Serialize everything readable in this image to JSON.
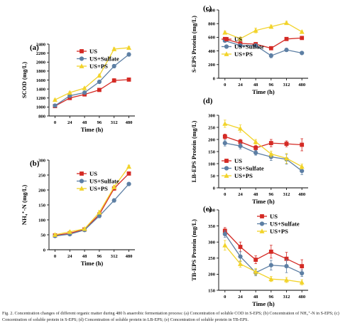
{
  "colors": {
    "us": "#d42a24",
    "sulfate": "#5d7fa4",
    "ps": "#f2d32a"
  },
  "caption": "Fig. 2. Concentration changes of different organic matter during 480 h anaerobic fermentation process: (a) Concentration of soluble COD in S-EPS; (b) Concentration of NH₄⁺-N in S-EPS; (c) Concentration of soluble protein in S-EPS; (d) Concentration of soluble protein in LB-EPS; (e) Concentration of soluble protein in TB-EPS.",
  "chart_data": [
    {
      "panel": "(a)",
      "type": "line",
      "xlabel": "Time (h)",
      "ylabel": "SCOD (mg/L)",
      "categories": [
        "0",
        "24",
        "48",
        "96",
        "312",
        "480"
      ],
      "ylim": [
        800,
        2400
      ],
      "yticks": [
        "800",
        "1000",
        "1200",
        "1400",
        "1600",
        "1800",
        "2000",
        "2200",
        "2400"
      ],
      "legend_position": "top-left",
      "series": [
        {
          "name": "US",
          "color_key": "us",
          "marker": "square",
          "values": [
            1020,
            1200,
            1280,
            1380,
            1590,
            1610
          ],
          "errors": [
            20,
            25,
            20,
            20,
            40,
            25
          ]
        },
        {
          "name": "US+Sulfate",
          "color_key": "sulfate",
          "marker": "circle",
          "values": [
            1030,
            1250,
            1320,
            1560,
            1910,
            2170
          ],
          "errors": [
            20,
            25,
            20,
            20,
            40,
            40
          ]
        },
        {
          "name": "US+PS",
          "color_key": "ps",
          "marker": "triangle",
          "values": [
            1160,
            1320,
            1420,
            1700,
            2290,
            2320
          ],
          "errors": [
            20,
            20,
            20,
            20,
            30,
            25
          ]
        }
      ]
    },
    {
      "panel": "(b)",
      "type": "line",
      "xlabel": "Time (h)",
      "ylabel": "NH₄⁺-N (mg/L)",
      "categories": [
        "0",
        "24",
        "48",
        "96",
        "312",
        "480"
      ],
      "ylim": [
        0,
        300
      ],
      "yticks": [
        "0",
        "50",
        "100",
        "150",
        "200",
        "250",
        "300"
      ],
      "legend_position": "top-left",
      "series": [
        {
          "name": "US",
          "color_key": "us",
          "marker": "square",
          "values": [
            48,
            55,
            68,
            118,
            205,
            255
          ],
          "errors": [
            4,
            4,
            4,
            6,
            6,
            5
          ]
        },
        {
          "name": "US+Sulfate",
          "color_key": "sulfate",
          "marker": "circle",
          "values": [
            46,
            52,
            66,
            113,
            165,
            220
          ],
          "errors": [
            4,
            4,
            4,
            6,
            6,
            5
          ]
        },
        {
          "name": "US+PS",
          "color_key": "ps",
          "marker": "triangle",
          "values": [
            50,
            60,
            70,
            125,
            210,
            278
          ],
          "errors": [
            4,
            4,
            4,
            6,
            6,
            5
          ]
        }
      ]
    },
    {
      "panel": "(c)",
      "type": "line",
      "xlabel": "Time (h)",
      "ylabel": "S-EPS Protein (mg/L)",
      "categories": [
        "0",
        "24",
        "48",
        "96",
        "312",
        "480"
      ],
      "ylim": [
        0,
        1000
      ],
      "yticks": [
        "0",
        "200",
        "400",
        "600",
        "800",
        "1000"
      ],
      "legend_position": "bottom-left",
      "series": [
        {
          "name": "US",
          "color_key": "us",
          "marker": "square",
          "values": [
            575,
            510,
            500,
            440,
            575,
            590
          ],
          "errors": [
            15,
            20,
            15,
            20,
            20,
            15
          ]
        },
        {
          "name": "US+Sulfate",
          "color_key": "sulfate",
          "marker": "circle",
          "values": [
            550,
            480,
            480,
            330,
            415,
            370
          ],
          "errors": [
            15,
            20,
            15,
            30,
            25,
            15
          ]
        },
        {
          "name": "US+PS",
          "color_key": "ps",
          "marker": "triangle",
          "values": [
            670,
            580,
            700,
            755,
            810,
            680
          ],
          "errors": [
            20,
            25,
            35,
            25,
            25,
            15
          ]
        }
      ]
    },
    {
      "panel": "(d)",
      "type": "line",
      "xlabel": "Time (h)",
      "ylabel": "LB-EPS Protein (mg/L)",
      "categories": [
        "0",
        "24",
        "48",
        "96",
        "312",
        "480"
      ],
      "ylim": [
        0,
        300
      ],
      "yticks": [
        "0",
        "50",
        "100",
        "150",
        "200",
        "250",
        "300"
      ],
      "legend_position": "bottom-left",
      "series": [
        {
          "name": "US",
          "color_key": "us",
          "marker": "square",
          "values": [
            212,
            190,
            165,
            185,
            182,
            178
          ],
          "errors": [
            10,
            10,
            10,
            15,
            12,
            25
          ]
        },
        {
          "name": "US+Sulfate",
          "color_key": "sulfate",
          "marker": "circle",
          "values": [
            185,
            173,
            145,
            128,
            118,
            70
          ],
          "errors": [
            12,
            12,
            10,
            15,
            20,
            15
          ]
        },
        {
          "name": "US+PS",
          "color_key": "ps",
          "marker": "triangle",
          "values": [
            265,
            245,
            190,
            140,
            122,
            88
          ],
          "errors": [
            15,
            15,
            10,
            12,
            20,
            10
          ]
        }
      ]
    },
    {
      "panel": "(e)",
      "type": "line",
      "xlabel": "Time (h)",
      "ylabel": "TB-EPS Protein (mg/L)",
      "categories": [
        "0",
        "24",
        "48",
        "96",
        "312",
        "480"
      ],
      "ylim": [
        150,
        400
      ],
      "yticks": [
        "150",
        "200",
        "250",
        "300",
        "350",
        "400"
      ],
      "legend_position": "top-right",
      "series": [
        {
          "name": "US",
          "color_key": "us",
          "marker": "square",
          "values": [
            335,
            285,
            245,
            270,
            248,
            225
          ],
          "errors": [
            10,
            15,
            12,
            20,
            20,
            20
          ]
        },
        {
          "name": "US+Sulfate",
          "color_key": "sulfate",
          "marker": "circle",
          "values": [
            325,
            255,
            205,
            228,
            225,
            203
          ],
          "errors": [
            10,
            15,
            10,
            15,
            20,
            10
          ]
        },
        {
          "name": "US+PS",
          "color_key": "ps",
          "marker": "triangle",
          "values": [
            290,
            232,
            208,
            185,
            182,
            175
          ],
          "errors": [
            15,
            10,
            10,
            8,
            8,
            8
          ]
        }
      ]
    }
  ]
}
